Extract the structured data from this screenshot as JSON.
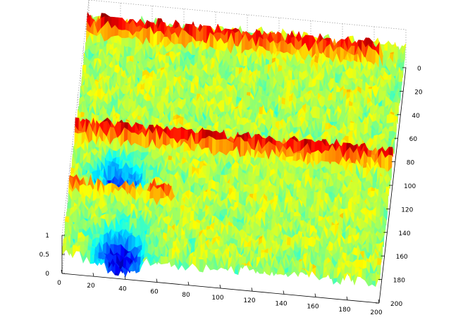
{
  "chart_data": {
    "type": "surface",
    "title": "",
    "xlabel": "",
    "ylabel": "",
    "zlabel": "",
    "colormap": "jet",
    "grid": true,
    "x_ticks": [
      0,
      20,
      40,
      60,
      80,
      100,
      120,
      140,
      160,
      180,
      200
    ],
    "y_ticks": [
      0,
      20,
      40,
      60,
      80,
      100,
      120,
      140,
      160,
      180,
      200
    ],
    "z_ticks": [
      0,
      0.5,
      1
    ],
    "xlim": [
      0,
      200
    ],
    "ylim": [
      0,
      200
    ],
    "zlim": [
      0,
      1
    ],
    "baseline_level": 0.55,
    "ridges": [
      {
        "y": 12,
        "x_start": 0,
        "x_end": 185,
        "peak": 0.95
      },
      {
        "y": 100,
        "x_start": 0,
        "x_end": 200,
        "peak": 0.97
      },
      {
        "y": 145,
        "x_start": 0,
        "x_end": 65,
        "peak": 0.85
      }
    ],
    "valleys": [
      {
        "x": 30,
        "y": 130,
        "depth": 0.15
      },
      {
        "x": 35,
        "y": 190,
        "depth": 0.05
      }
    ]
  }
}
